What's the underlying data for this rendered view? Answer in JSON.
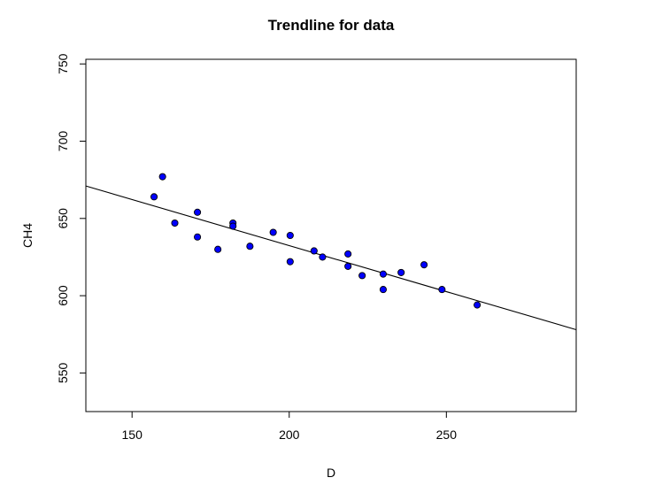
{
  "chart_data": {
    "type": "scatter",
    "title": "Trendline for data",
    "xlabel": "D",
    "ylabel": "CH4",
    "xlim": [
      135.3,
      291.3
    ],
    "ylim": [
      525,
      753
    ],
    "x_ticks": [
      150,
      200,
      250
    ],
    "y_ticks": [
      550,
      600,
      650,
      700,
      750
    ],
    "grid": false,
    "legend": "none",
    "point_fill": "#0000ff",
    "point_edge": "#000000",
    "line_color": "#000000",
    "points": [
      {
        "x": 157.0,
        "y": 664
      },
      {
        "x": 159.7,
        "y": 677
      },
      {
        "x": 163.6,
        "y": 647
      },
      {
        "x": 170.8,
        "y": 654
      },
      {
        "x": 170.8,
        "y": 638
      },
      {
        "x": 177.3,
        "y": 630
      },
      {
        "x": 182.1,
        "y": 647
      },
      {
        "x": 182.1,
        "y": 645
      },
      {
        "x": 187.5,
        "y": 632
      },
      {
        "x": 194.9,
        "y": 641
      },
      {
        "x": 200.3,
        "y": 639
      },
      {
        "x": 200.3,
        "y": 622
      },
      {
        "x": 207.9,
        "y": 629
      },
      {
        "x": 210.6,
        "y": 625
      },
      {
        "x": 218.7,
        "y": 627
      },
      {
        "x": 218.7,
        "y": 619
      },
      {
        "x": 223.2,
        "y": 613
      },
      {
        "x": 229.9,
        "y": 614
      },
      {
        "x": 229.9,
        "y": 604
      },
      {
        "x": 235.6,
        "y": 615
      },
      {
        "x": 242.9,
        "y": 620
      },
      {
        "x": 248.6,
        "y": 604
      },
      {
        "x": 259.8,
        "y": 594
      }
    ],
    "trendline": {
      "x": [
        135.3,
        291.3
      ],
      "y": [
        671,
        578
      ]
    }
  }
}
